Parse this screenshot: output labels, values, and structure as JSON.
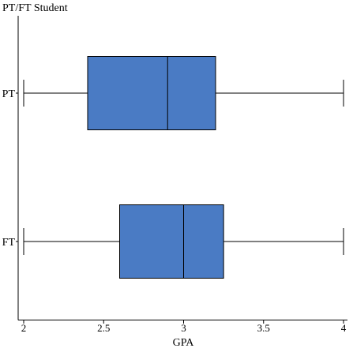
{
  "chart_data": {
    "type": "boxplot",
    "orientation": "horizontal",
    "title": "PT/FT Student",
    "xlabel": "GPA",
    "ylabel": "",
    "xlim": [
      2,
      4
    ],
    "xticks": [
      "2",
      "2.5",
      "3",
      "3.5",
      "4"
    ],
    "categories": [
      "PT",
      "FT"
    ],
    "boxes": [
      {
        "category": "PT",
        "min": 2,
        "q1": 2.4,
        "median": 2.9,
        "q3": 3.2,
        "max": 4
      },
      {
        "category": "FT",
        "min": 2,
        "q1": 2.6,
        "median": 3,
        "q3": 3.25,
        "max": 4
      }
    ],
    "box_color": "#4a7bc4",
    "grid": false,
    "legend": "none"
  }
}
